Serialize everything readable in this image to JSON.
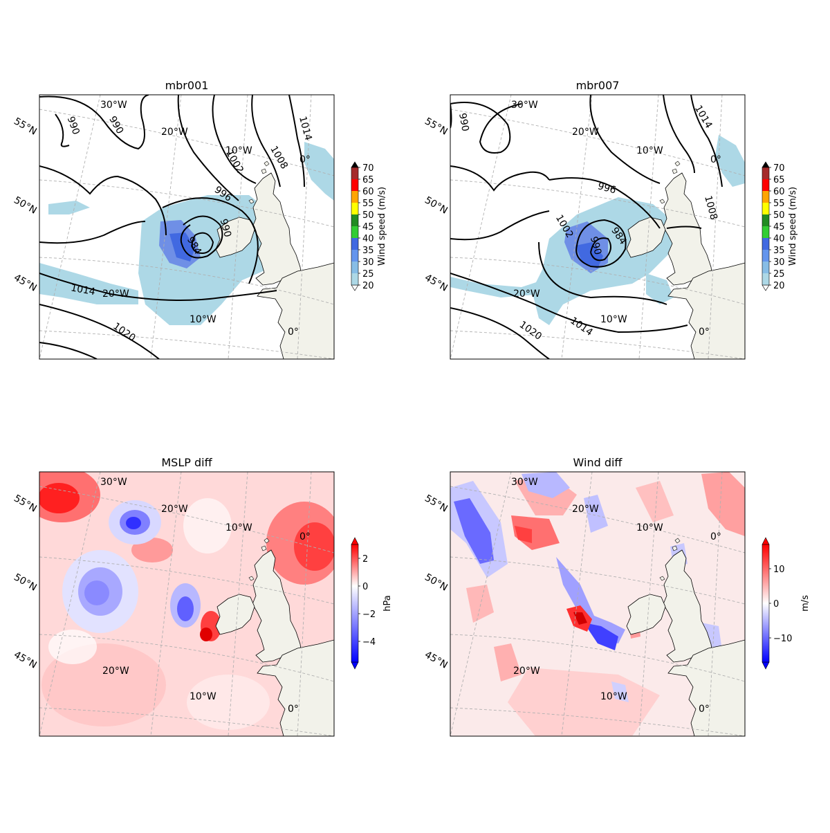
{
  "panels": {
    "mbr001": {
      "title": "mbr001",
      "gridlabels": {
        "w30": "30°W",
        "w20a": "20°W",
        "w10a": "10°W",
        "e0a": "0°",
        "w20b": "20°W",
        "w10b": "10°W",
        "e0b": "0°",
        "n55": "55°N",
        "n50": "50°N",
        "n45": "45°N"
      },
      "contour_labels": {
        "c990a": "990",
        "c990b": "990",
        "c1002": "1002",
        "c1008": "1008",
        "c1014a": "1014",
        "c996": "996",
        "c990c": "990",
        "c984": "984",
        "c1014b": "1014",
        "c1020": "1020"
      }
    },
    "mbr007": {
      "title": "mbr007",
      "gridlabels": {
        "w30": "30°W",
        "w20a": "20°W",
        "w10a": "10°W",
        "e0a": "0°",
        "w20b": "20°W",
        "w10b": "10°W",
        "e0b": "0°",
        "n55": "55°N",
        "n50": "50°N",
        "n45": "45°N"
      },
      "contour_labels": {
        "c990": "990",
        "c996": "996",
        "c1002": "1002",
        "c990b": "990",
        "c984": "984",
        "c1008": "1008",
        "c1014a": "1014",
        "c1020": "1020",
        "c1014b": "1014"
      }
    },
    "mslp": {
      "title": "MSLP diff",
      "gridlabels": {
        "w30": "30°W",
        "w20a": "20°W",
        "w10a": "10°W",
        "e0a": "0°",
        "w20b": "20°W",
        "w10b": "10°W",
        "e0b": "0°",
        "n55": "55°N",
        "n50": "50°N",
        "n45": "45°N"
      }
    },
    "wind": {
      "title": "Wind diff",
      "gridlabels": {
        "w30": "30°W",
        "w20a": "20°W",
        "w10a": "10°W",
        "e0a": "0°",
        "w20b": "20°W",
        "w10b": "10°W",
        "e0b": "0°",
        "n55": "55°N",
        "n50": "50°N",
        "n45": "45°N"
      }
    }
  },
  "colorbars": {
    "wind_speed": {
      "label": "Wind speed (m/s)",
      "ticks": [
        "20",
        "25",
        "30",
        "35",
        "40",
        "45",
        "50",
        "55",
        "60",
        "65",
        "70"
      ],
      "colors": [
        "#add8e6",
        "#87bde6",
        "#6495ed",
        "#4169e1",
        "#32cd32",
        "#228b22",
        "#ffff00",
        "#ffa500",
        "#ff0000",
        "#a52a2a"
      ]
    },
    "mslp": {
      "label": "hPa",
      "ticks": [
        "2",
        "0",
        "−2",
        "−4"
      ],
      "range": [
        -5.5,
        3.0
      ]
    },
    "wind": {
      "label": "m/s",
      "ticks": [
        "10",
        "0",
        "−10"
      ],
      "range": [
        -17,
        17
      ]
    }
  },
  "colors": {
    "land": "#f2f2ea",
    "wind_light": "#add8e6",
    "wind_mid": "#6f8fe6",
    "diff_pos": "#ff0000",
    "diff_neg": "#0000ff"
  }
}
